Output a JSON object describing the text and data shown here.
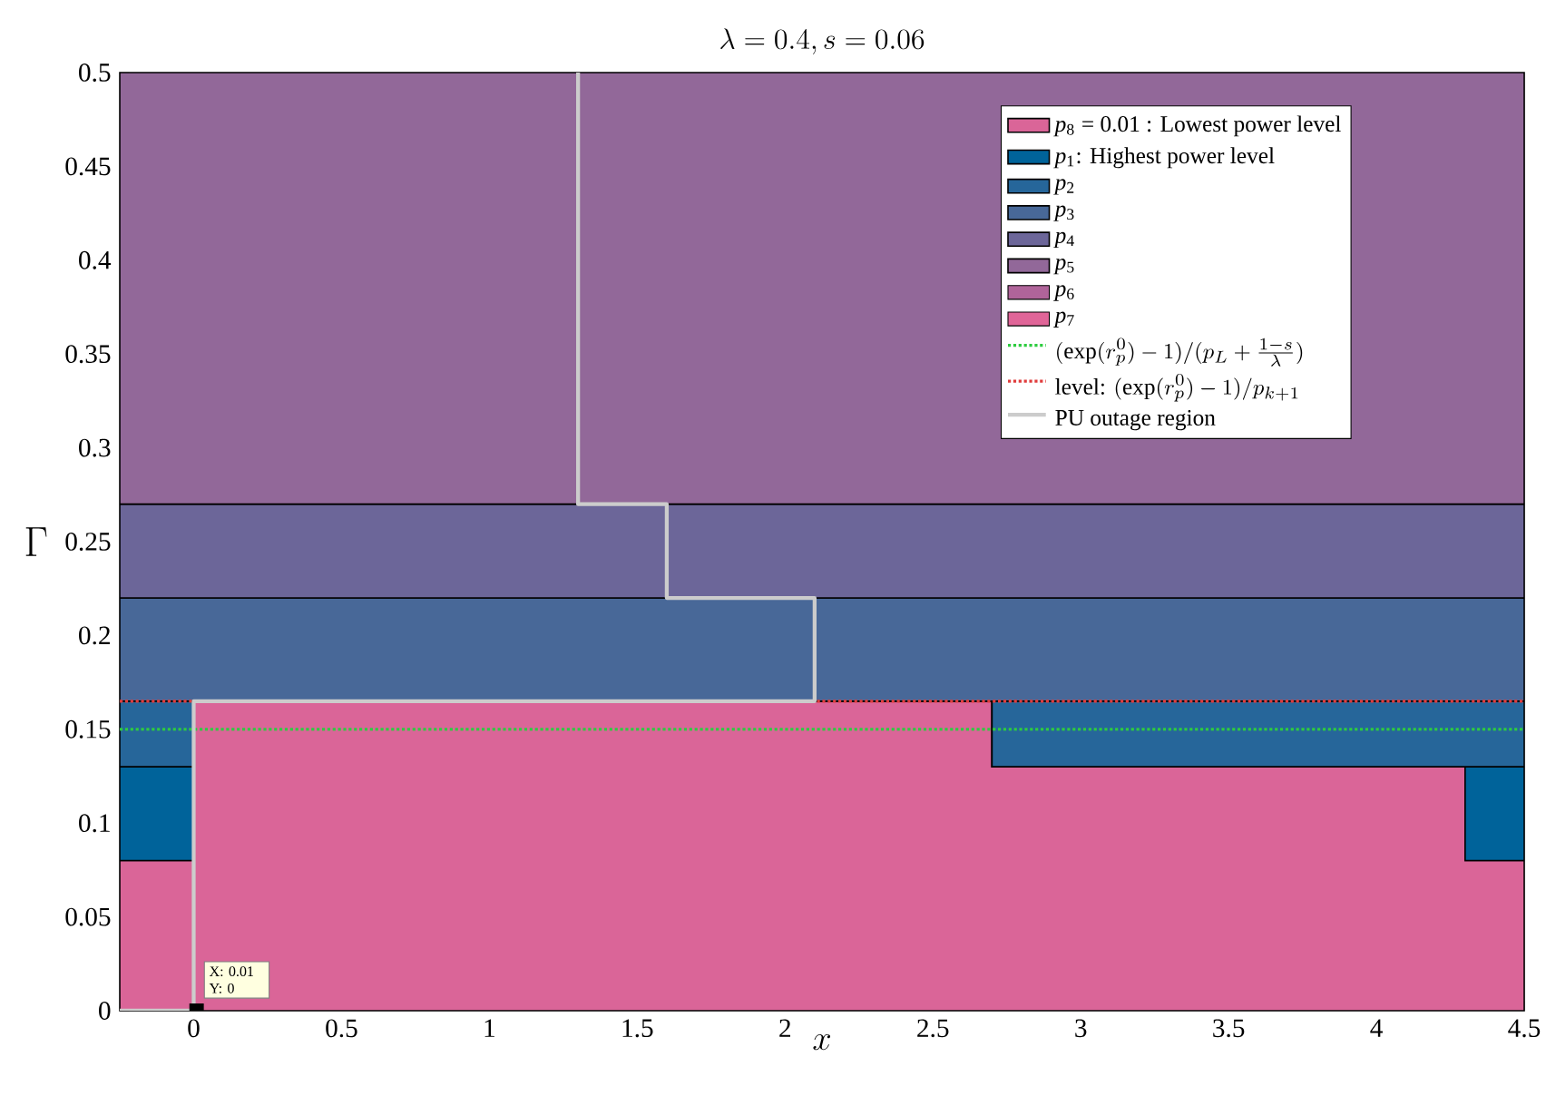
{
  "chart_data": {
    "type": "area",
    "title": "\\lambda = 0.4, s = 0.06",
    "xlabel": "x",
    "ylabel": "\\Gamma",
    "x": [
      -0.25,
      0,
      2.7,
      4.3,
      4.5
    ],
    "series": [
      {
        "name": "*p*$_{8}$ = 0.01 : Lowest power level",
        "color": "#da6598",
        "values": [
          0.08,
          0.165,
          0.13,
          0.08,
          0.08
        ]
      },
      {
        "name": "*p*$_{1}$: Highest power level",
        "color": "#00639a",
        "values": [
          0.05,
          0,
          0,
          0.05,
          0.05
        ]
      },
      {
        "name": "*p*$_{2}$",
        "color": "#26669a",
        "values": [
          0.035,
          0,
          0.035,
          0.035,
          0.035
        ]
      },
      {
        "name": "*p*$_{3}$",
        "color": "#486898",
        "values": [
          0.055,
          0.055,
          0.055,
          0.055,
          0.055
        ]
      },
      {
        "name": "*p*$_{4}$",
        "color": "#6c6699",
        "values": [
          0.05,
          0.05,
          0.05,
          0.05,
          0.05
        ]
      },
      {
        "name": "*p*$_{5}$",
        "color": "#926899",
        "values": [
          0.23,
          0.23,
          0.23,
          0.23,
          0.23
        ]
      },
      {
        "name": "*p*$_{6}$",
        "color": "#b0649a",
        "values": [
          null,
          null,
          null,
          null,
          null
        ]
      },
      {
        "name": "*p*$_{7}$",
        "color": "#e06598",
        "values": [
          null,
          null,
          null,
          null,
          null
        ]
      },
      {
        "type": "line",
        "name": "(\\exp(r_p^0)-1)/(p_L+\\frac{1-s}{\\lambda})",
        "color": "#2ecc40",
        "line_style": "dotted",
        "x": [
          -0.25,
          4.5
        ],
        "values": [
          0.15,
          0.15
        ]
      },
      {
        "type": "line",
        "name": "\\mbox{level: }(\\exp(r_p^0)-1)/p_{k+1}",
        "color": "#e03c3c",
        "line_style": "dotted",
        "x": [
          -0.25,
          4.5
        ],
        "values": [
          0.165,
          0.165
        ]
      },
      {
        "type": "line",
        "name": "\\mbox{PU outage region}",
        "color": "#cccccc",
        "line_style": "solid",
        "x": [
          -0.25,
          0,
          0,
          2.1,
          2.1,
          1.6,
          1.6,
          1.3,
          1.3
        ],
        "values": [
          0,
          0,
          0.165,
          0.165,
          0.22,
          0.22,
          0.27,
          0.27,
          0.5
        ]
      }
    ],
    "xlim": [
      -0.25,
      4.5
    ],
    "ylim": [
      0,
      0.5
    ],
    "xticks": [
      0,
      0.5,
      1,
      1.5,
      2,
      2.5,
      3,
      3.5,
      4,
      4.5
    ],
    "yticks": [
      0,
      0.05,
      0.1,
      0.15,
      0.2,
      0.25,
      0.3,
      0.35,
      0.4,
      0.45,
      0.5
    ],
    "legend": "top right",
    "stacked": true,
    "annotations": [
      {
        "text": "X: 0.01 Y: 0",
        "x": 0.01,
        "y": 0
      }
    ]
  }
}
